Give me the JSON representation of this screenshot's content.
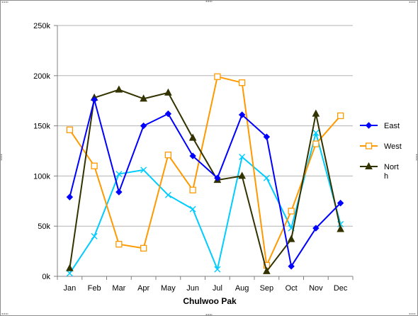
{
  "chart_data": {
    "type": "line",
    "title": "",
    "xlabel": "Chulwoo Pak",
    "ylabel": "",
    "ylim": [
      0,
      250000
    ],
    "yticks": [
      0,
      50000,
      100000,
      150000,
      200000,
      250000
    ],
    "ytick_labels": [
      "0k",
      "50k",
      "100k",
      "150k",
      "200k",
      "250k"
    ],
    "grid": true,
    "legend_position": "right",
    "categories": [
      "Jan",
      "Feb",
      "Mar",
      "Apr",
      "May",
      "Jun",
      "Jul",
      "Aug",
      "Sep",
      "Oct",
      "Nov",
      "Dec"
    ],
    "series": [
      {
        "name": "East",
        "color": "#0000ff",
        "marker": "diamond",
        "values": [
          79000,
          176000,
          84000,
          150000,
          162000,
          120000,
          98000,
          161000,
          139000,
          10000,
          48000,
          73000
        ],
        "show_in_legend": true
      },
      {
        "name": "West",
        "color": "#ff9900",
        "marker": "square",
        "values": [
          146000,
          110000,
          32000,
          28000,
          121000,
          86000,
          199000,
          193000,
          11000,
          65000,
          132000,
          160000
        ],
        "show_in_legend": true
      },
      {
        "name": "Nort h",
        "color": "#333300",
        "marker": "triangle",
        "values": [
          8000,
          178000,
          186000,
          177000,
          183000,
          138000,
          96000,
          100000,
          5000,
          37000,
          162000,
          47000
        ],
        "show_in_legend": true
      },
      {
        "name": "",
        "color": "#00ccff",
        "marker": "x",
        "values": [
          3000,
          40000,
          102000,
          106000,
          81000,
          67000,
          7000,
          119000,
          98000,
          48000,
          143000,
          52000
        ],
        "show_in_legend": false
      }
    ]
  }
}
